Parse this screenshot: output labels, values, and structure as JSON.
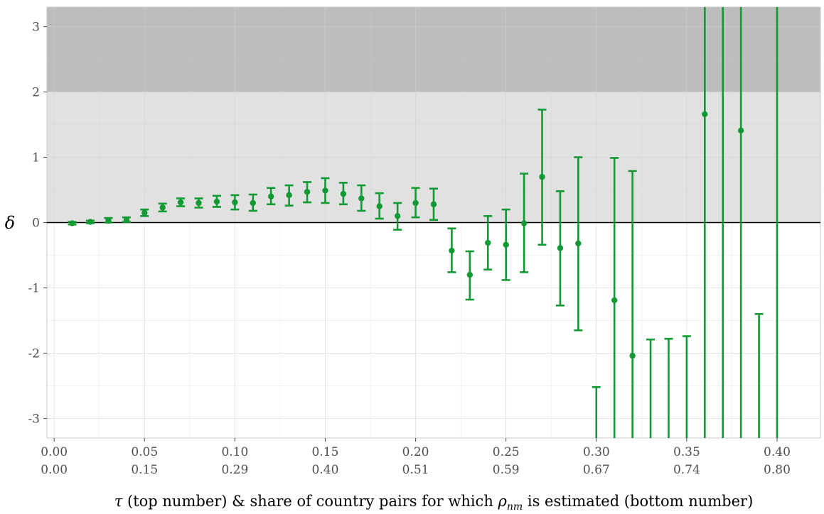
{
  "chart_data": {
    "type": "errorbar",
    "title": "",
    "ylabel": "δ",
    "xlabel": {
      "tau": "τ",
      "part1": " (top number) & share of country pairs for which ",
      "rho": "ρ",
      "rho_sub": "nm",
      "part2": " is estimated (bottom number)"
    },
    "ylim": [
      -3.3,
      3.3
    ],
    "xlim": [
      -0.004,
      0.424
    ],
    "grid": true,
    "shaded_bands": [
      {
        "y_from": 2,
        "y_to": 3.3,
        "color": "#bdbdbd"
      },
      {
        "y_from": 0,
        "y_to": 2,
        "color": "#e1e1e1"
      }
    ],
    "reference_line": {
      "y": 0,
      "color": "#000000"
    },
    "series_color": "#119933",
    "y_ticks": [
      {
        "value": -3,
        "label": "-3"
      },
      {
        "value": -2,
        "label": "-2"
      },
      {
        "value": -1,
        "label": "-1"
      },
      {
        "value": 0,
        "label": "0"
      },
      {
        "value": 1,
        "label": "1"
      },
      {
        "value": 2,
        "label": "2"
      },
      {
        "value": 3,
        "label": "3"
      }
    ],
    "x_ticks": [
      {
        "value": 0.0,
        "top": "0.00",
        "bottom": "0.00"
      },
      {
        "value": 0.05,
        "top": "0.05",
        "bottom": "0.15"
      },
      {
        "value": 0.1,
        "top": "0.10",
        "bottom": "0.29"
      },
      {
        "value": 0.15,
        "top": "0.15",
        "bottom": "0.40"
      },
      {
        "value": 0.2,
        "top": "0.20",
        "bottom": "0.51"
      },
      {
        "value": 0.25,
        "top": "0.25",
        "bottom": "0.59"
      },
      {
        "value": 0.3,
        "top": "0.30",
        "bottom": "0.67"
      },
      {
        "value": 0.35,
        "top": "0.35",
        "bottom": "0.74"
      },
      {
        "value": 0.4,
        "top": "0.40",
        "bottom": "0.80"
      }
    ],
    "points": [
      {
        "x": 0.01,
        "y": -0.01,
        "lo": -0.03,
        "hi": 0.01
      },
      {
        "x": 0.02,
        "y": 0.01,
        "lo": -0.01,
        "hi": 0.03
      },
      {
        "x": 0.03,
        "y": 0.03,
        "lo": 0.0,
        "hi": 0.07
      },
      {
        "x": 0.04,
        "y": 0.04,
        "lo": 0.01,
        "hi": 0.08
      },
      {
        "x": 0.05,
        "y": 0.15,
        "lo": 0.1,
        "hi": 0.2
      },
      {
        "x": 0.06,
        "y": 0.23,
        "lo": 0.17,
        "hi": 0.29
      },
      {
        "x": 0.07,
        "y": 0.31,
        "lo": 0.25,
        "hi": 0.37
      },
      {
        "x": 0.08,
        "y": 0.3,
        "lo": 0.23,
        "hi": 0.37
      },
      {
        "x": 0.09,
        "y": 0.32,
        "lo": 0.24,
        "hi": 0.41
      },
      {
        "x": 0.1,
        "y": 0.31,
        "lo": 0.2,
        "hi": 0.42
      },
      {
        "x": 0.11,
        "y": 0.3,
        "lo": 0.18,
        "hi": 0.43
      },
      {
        "x": 0.12,
        "y": 0.4,
        "lo": 0.28,
        "hi": 0.53
      },
      {
        "x": 0.13,
        "y": 0.42,
        "lo": 0.26,
        "hi": 0.57
      },
      {
        "x": 0.14,
        "y": 0.47,
        "lo": 0.31,
        "hi": 0.62
      },
      {
        "x": 0.15,
        "y": 0.49,
        "lo": 0.3,
        "hi": 0.68
      },
      {
        "x": 0.16,
        "y": 0.44,
        "lo": 0.28,
        "hi": 0.61
      },
      {
        "x": 0.17,
        "y": 0.37,
        "lo": 0.18,
        "hi": 0.57
      },
      {
        "x": 0.18,
        "y": 0.25,
        "lo": 0.06,
        "hi": 0.45
      },
      {
        "x": 0.19,
        "y": 0.1,
        "lo": -0.11,
        "hi": 0.3
      },
      {
        "x": 0.2,
        "y": 0.3,
        "lo": 0.08,
        "hi": 0.53
      },
      {
        "x": 0.21,
        "y": 0.28,
        "lo": 0.04,
        "hi": 0.52
      },
      {
        "x": 0.22,
        "y": -0.43,
        "lo": -0.76,
        "hi": -0.09
      },
      {
        "x": 0.23,
        "y": -0.8,
        "lo": -1.18,
        "hi": -0.44
      },
      {
        "x": 0.24,
        "y": -0.31,
        "lo": -0.72,
        "hi": 0.1
      },
      {
        "x": 0.25,
        "y": -0.34,
        "lo": -0.88,
        "hi": 0.2
      },
      {
        "x": 0.26,
        "y": -0.01,
        "lo": -0.76,
        "hi": 0.75
      },
      {
        "x": 0.27,
        "y": 0.7,
        "lo": -0.34,
        "hi": 1.73
      },
      {
        "x": 0.28,
        "y": -0.39,
        "lo": -1.27,
        "hi": 0.48
      },
      {
        "x": 0.29,
        "y": -0.32,
        "lo": -1.65,
        "hi": 1.0
      },
      {
        "x": 0.3,
        "y": null,
        "lo": null,
        "hi": -2.52
      },
      {
        "x": 0.31,
        "y": -1.19,
        "lo": null,
        "hi": 0.99
      },
      {
        "x": 0.32,
        "y": -2.04,
        "lo": null,
        "hi": 0.79
      },
      {
        "x": 0.33,
        "y": null,
        "lo": null,
        "hi": -1.79
      },
      {
        "x": 0.34,
        "y": null,
        "lo": null,
        "hi": -1.78
      },
      {
        "x": 0.35,
        "y": null,
        "lo": null,
        "hi": -1.74
      },
      {
        "x": 0.36,
        "y": 1.66,
        "lo": null,
        "hi": null
      },
      {
        "x": 0.37,
        "y": null,
        "lo": null,
        "hi": null
      },
      {
        "x": 0.38,
        "y": 1.41,
        "lo": null,
        "hi": null
      },
      {
        "x": 0.39,
        "y": null,
        "lo": null,
        "hi": -1.4
      },
      {
        "x": 0.4,
        "y": null,
        "lo": null,
        "hi": null
      }
    ]
  }
}
